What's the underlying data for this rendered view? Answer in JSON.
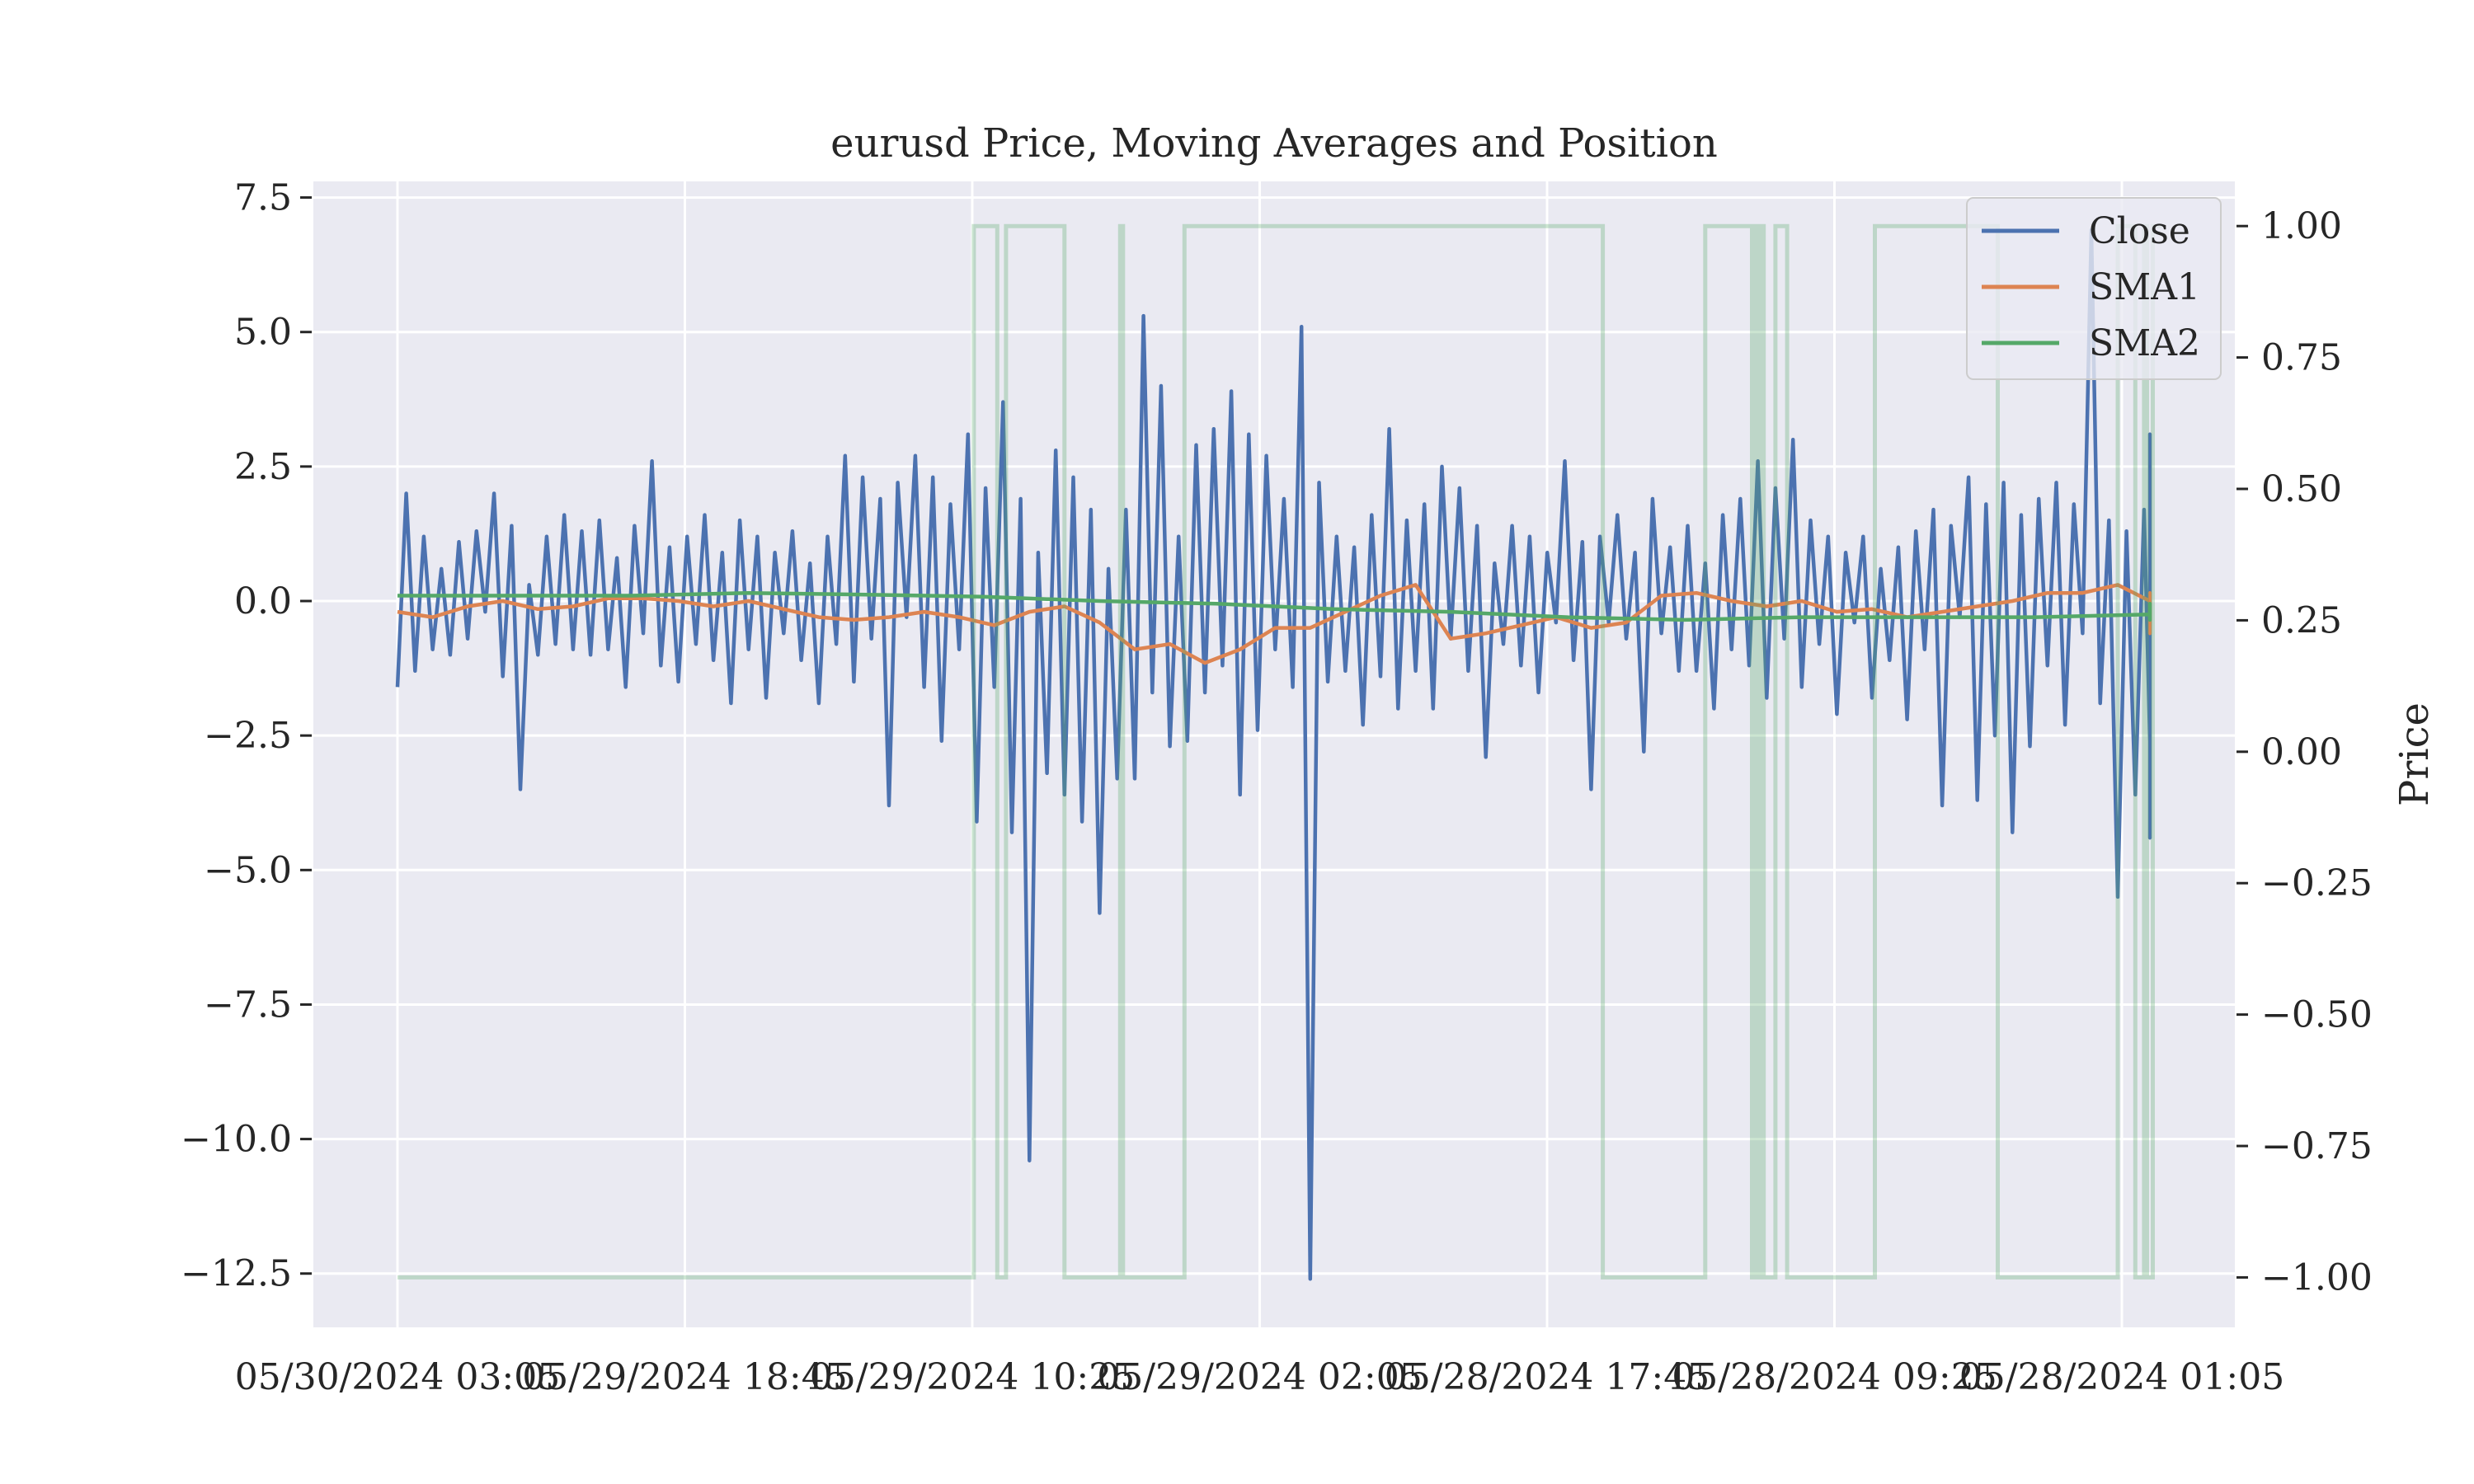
{
  "chart_data": {
    "type": "line",
    "title": "eurusd Price, Moving Averages and Position",
    "xlabel": "",
    "ylabel": "",
    "y2label": "Price",
    "grid": true,
    "legend_position": "top-right",
    "x_tick_labels": [
      "05/30/2024 03:05",
      "05/29/2024 18:45",
      "05/29/2024 10:25",
      "05/29/2024 02:05",
      "05/28/2024 17:45",
      "05/28/2024 09:25",
      "05/28/2024 01:05"
    ],
    "y_ticks": [
      7.5,
      5.0,
      2.5,
      0.0,
      -2.5,
      -5.0,
      -7.5,
      -10.0,
      -12.5
    ],
    "y_tick_labels": [
      "7.5",
      "5.0",
      "2.5",
      "0.0",
      "−2.5",
      "−5.0",
      "−7.5",
      "−10.0",
      "−12.5"
    ],
    "ylim": [
      -13.5,
      7.8
    ],
    "y2_ticks": [
      1.0,
      0.75,
      0.5,
      0.25,
      0.0,
      -0.25,
      -0.5,
      -0.75,
      -1.0
    ],
    "y2_tick_labels": [
      "1.00",
      "0.75",
      "0.50",
      "0.25",
      "0.00",
      "−0.25",
      "−0.50",
      "−0.75",
      "−1.00"
    ],
    "y2lim": [
      -1.095,
      1.085
    ],
    "x_count": 600,
    "series_colors": {
      "Close": "#4c72b0",
      "SMA1": "#dd8452",
      "SMA2": "#55a868",
      "Position": "#55a868"
    },
    "legend": [
      "Close",
      "SMA1",
      "SMA2"
    ],
    "series": [
      {
        "name": "Close",
        "axis": "left",
        "step": 3,
        "values": [
          -1.6,
          2.0,
          -1.3,
          1.2,
          -0.9,
          0.6,
          -1.0,
          1.1,
          -0.7,
          1.3,
          -0.2,
          2.0,
          -1.4,
          1.4,
          -3.5,
          0.3,
          -1.0,
          1.2,
          -0.8,
          1.6,
          -0.9,
          1.3,
          -1.0,
          1.5,
          -0.9,
          0.8,
          -1.6,
          1.4,
          -0.6,
          2.6,
          -1.2,
          1.0,
          -1.5,
          1.2,
          -0.8,
          1.6,
          -1.1,
          0.9,
          -1.9,
          1.5,
          -0.9,
          1.2,
          -1.8,
          0.9,
          -0.6,
          1.3,
          -1.1,
          0.7,
          -1.9,
          1.2,
          -0.8,
          2.7,
          -1.5,
          2.3,
          -0.7,
          1.9,
          -3.8,
          2.2,
          -0.3,
          2.7,
          -1.6,
          2.3,
          -2.6,
          1.8,
          -0.9,
          3.1,
          -4.1,
          2.1,
          -1.6,
          3.7,
          -4.3,
          1.9,
          -10.4,
          0.9,
          -3.2,
          2.8,
          -3.6,
          2.3,
          -4.1,
          1.7,
          -5.8,
          0.6,
          -3.3,
          1.7,
          -3.3,
          5.3,
          -1.7,
          4.0,
          -2.7,
          1.2,
          -2.6,
          2.9,
          -1.7,
          3.2,
          -1.2,
          3.9,
          -3.6,
          3.1,
          -2.4,
          2.7,
          -0.9,
          1.9,
          -1.6,
          5.1,
          -12.6,
          2.2,
          -1.5,
          1.2,
          -1.3,
          1.0,
          -2.3,
          1.6,
          -1.4,
          3.2,
          -2.0,
          1.5,
          -1.3,
          1.8,
          -2.0,
          2.5,
          -0.7,
          2.1,
          -1.3,
          1.4,
          -2.9,
          0.7,
          -0.8,
          1.4,
          -1.2,
          1.2,
          -1.7,
          0.9,
          -0.4,
          2.6,
          -1.1,
          1.1,
          -3.5,
          1.2,
          -0.4,
          1.6,
          -0.7,
          0.9,
          -2.8,
          1.9,
          -0.6,
          1.0,
          -1.3,
          1.4,
          -1.3,
          0.7,
          -2.0,
          1.6,
          -0.9,
          1.9,
          -1.2,
          2.6,
          -1.8,
          2.1,
          -0.7,
          3.0,
          -1.6,
          1.5,
          -0.8,
          1.2,
          -2.1,
          0.9,
          -0.4,
          1.2,
          -1.8,
          0.6,
          -1.1,
          1.0,
          -2.2,
          1.3,
          -0.9,
          1.7,
          -3.8,
          1.4,
          -0.3,
          2.3,
          -3.7,
          1.8,
          -2.5,
          2.2,
          -4.3,
          1.6,
          -2.7,
          1.9,
          -1.2,
          2.2,
          -2.3,
          1.8,
          -0.6,
          6.9,
          -1.9,
          1.5,
          -5.5,
          1.3,
          -3.6,
          1.7,
          -2.6,
          0.9,
          -1.8,
          1.6,
          -2.7,
          1.2,
          -2.3,
          2.1,
          -1.6,
          3.1,
          -2.0,
          1.1,
          -2.6,
          2.4,
          -1.7,
          1.7,
          -2.7,
          1.3,
          -1.8,
          1.6,
          -1.3,
          2.2,
          -0.6,
          1.4,
          -1.9,
          1.0,
          -1.2,
          1.8,
          -1.5,
          0.7,
          -4.4,
          1.3,
          -0.8,
          1.1,
          -1.5,
          2.2,
          -0.9,
          1.1,
          -2.4,
          2.5,
          -1.4,
          1.3,
          -2.3,
          2.5,
          -0.3,
          0.7,
          -4.2
        ]
      },
      {
        "name": "SMA1",
        "axis": "left",
        "step": 12,
        "values": [
          -0.2,
          -0.3,
          -0.1,
          0.0,
          -0.15,
          -0.1,
          0.05,
          0.05,
          0.0,
          -0.1,
          0.0,
          -0.15,
          -0.3,
          -0.35,
          -0.3,
          -0.2,
          -0.3,
          -0.45,
          -0.2,
          -0.1,
          -0.4,
          -0.9,
          -0.8,
          -1.15,
          -0.9,
          -0.5,
          -0.5,
          -0.2,
          0.1,
          0.3,
          -0.7,
          -0.6,
          -0.45,
          -0.3,
          -0.5,
          -0.4,
          0.1,
          0.15,
          0.0,
          -0.1,
          0.0,
          -0.2,
          -0.15,
          -0.3,
          -0.2,
          -0.1,
          0.0,
          0.15,
          0.15,
          0.3,
          0.0,
          -0.4,
          -0.2,
          -0.2,
          0.0,
          -0.6,
          -0.2,
          -0.3,
          0.1,
          -0.2,
          -0.4,
          -0.2,
          0.0,
          0.0,
          0.05,
          0.1,
          0.15,
          -0.1,
          -0.1,
          -0.2,
          -0.3,
          -0.1,
          -0.1,
          -0.2,
          -0.1,
          0.0,
          0.0,
          0.05,
          -0.1,
          -0.1,
          -0.2,
          -0.2,
          -0.25,
          -0.2,
          -0.15,
          -0.15,
          -0.1,
          -0.2,
          -0.15,
          -0.1,
          -0.05,
          0.1,
          0.0,
          0.1,
          0.05,
          -0.1,
          -0.1,
          -0.15,
          -0.1,
          -0.1
        ]
      },
      {
        "name": "SMA2",
        "axis": "left",
        "step": 40,
        "values": [
          0.1,
          0.1,
          0.1,
          0.15,
          0.12,
          0.08,
          0.0,
          -0.05,
          -0.15,
          -0.2,
          -0.3,
          -0.35,
          -0.3,
          -0.3,
          -0.3,
          -0.25,
          -0.3,
          -0.3,
          -0.3,
          -0.35,
          -0.35,
          -0.3,
          -0.2,
          -0.15,
          -0.1,
          -0.05,
          -0.1,
          -0.15,
          -0.2,
          -0.2,
          -0.15,
          -0.15,
          -0.15,
          -0.15,
          -0.15,
          -0.15,
          -0.12,
          -0.1,
          -0.12,
          -0.12
        ]
      },
      {
        "name": "Position",
        "axis": "right",
        "values": [
          -1,
          -1,
          -1,
          -1,
          -1,
          -1,
          -1,
          -1,
          -1,
          -1,
          -1,
          -1,
          -1,
          -1,
          -1,
          -1,
          -1,
          -1,
          -1,
          -1,
          -1,
          -1,
          -1,
          -1,
          -1,
          -1,
          -1,
          -1,
          -1,
          -1,
          -1,
          -1,
          -1,
          -1,
          -1,
          -1,
          -1,
          -1,
          -1,
          -1,
          -1,
          -1,
          -1,
          -1,
          -1,
          -1,
          -1,
          -1,
          -1,
          -1,
          -1,
          -1,
          -1,
          -1,
          -1,
          -1,
          -1,
          -1,
          -1,
          -1,
          -1,
          -1,
          -1,
          -1,
          -1,
          -1,
          -1,
          -1,
          -1,
          -1,
          -1,
          -1,
          -1,
          -1,
          -1,
          -1,
          -1,
          -1,
          -1,
          -1,
          -1,
          -1,
          -1,
          -1,
          -1,
          -1,
          -1,
          -1,
          -1,
          -1,
          -1,
          -1,
          -1,
          -1,
          -1,
          -1,
          -1,
          -1,
          -1,
          -1,
          -1,
          -1,
          -1,
          -1,
          -1,
          -1,
          -1,
          -1,
          -1,
          -1,
          -1,
          -1,
          -1,
          -1,
          -1,
          -1,
          -1,
          -1,
          -1,
          -1,
          -1,
          -1,
          -1,
          -1,
          -1,
          -1,
          -1,
          -1,
          -1,
          -1,
          -1,
          -1,
          -1,
          -1,
          -1,
          -1,
          -1,
          -1,
          -1,
          -1,
          -1,
          -1,
          -1,
          -1,
          -1,
          -1,
          -1,
          -1,
          -1,
          -1,
          -1,
          -1,
          -1,
          -1,
          -1,
          -1,
          -1,
          -1,
          -1,
          -1,
          -1,
          -1,
          -1,
          -1,
          -1,
          -1,
          -1,
          -1,
          -1,
          -1,
          -1,
          -1,
          -1,
          -1,
          -1,
          -1,
          -1,
          -1,
          -1,
          -1,
          -1,
          -1,
          -1,
          -1,
          -1,
          -1,
          -1,
          -1,
          -1,
          -1,
          -1,
          -1,
          -1,
          -1,
          -1,
          -1,
          -1,
          1,
          1,
          1,
          1,
          1,
          1,
          1,
          1,
          -1,
          -1,
          -1,
          1,
          1,
          1,
          1,
          1,
          1,
          1,
          1,
          1,
          1,
          1,
          1,
          1,
          1,
          1,
          1,
          1,
          1,
          1,
          1,
          -1,
          -1,
          -1,
          -1,
          -1,
          -1,
          -1,
          -1,
          -1,
          -1,
          -1,
          -1,
          -1,
          -1,
          -1,
          -1,
          -1,
          -1,
          -1,
          1,
          -1,
          -1,
          -1,
          -1,
          -1,
          -1,
          -1,
          -1,
          -1,
          -1,
          -1,
          -1,
          -1,
          -1,
          -1,
          -1,
          -1,
          -1,
          -1,
          -1,
          -1,
          1,
          1,
          1,
          1,
          1,
          1,
          1,
          1,
          1,
          1,
          1,
          1,
          1,
          1,
          1,
          1,
          1,
          1,
          1,
          1,
          1,
          1,
          1,
          1,
          1,
          1,
          1,
          1,
          1,
          1,
          1,
          1,
          1,
          1,
          1,
          1,
          1,
          1,
          1,
          1,
          1,
          1,
          1,
          1,
          1,
          1,
          1,
          1,
          1,
          1,
          1,
          1,
          1,
          1,
          1,
          1,
          1,
          1,
          1,
          1,
          1,
          1,
          1,
          1,
          1,
          1,
          1,
          1,
          1,
          1,
          1,
          1,
          1,
          1,
          1,
          1,
          1,
          1,
          1,
          1,
          1,
          1,
          1,
          1,
          1,
          1,
          1,
          1,
          1,
          1,
          1,
          1,
          1,
          1,
          1,
          1,
          1,
          1,
          1,
          1,
          1,
          1,
          1,
          1,
          1,
          1,
          1,
          1,
          1,
          1,
          1,
          1,
          1,
          1,
          1,
          1,
          1,
          1,
          1,
          1,
          1,
          1,
          1,
          1,
          1,
          1,
          1,
          1,
          1,
          1,
          1,
          1,
          1,
          1,
          1,
          1,
          1,
          1,
          1,
          1,
          1,
          1,
          1,
          -1,
          -1,
          -1,
          -1,
          -1,
          -1,
          -1,
          -1,
          -1,
          -1,
          -1,
          -1,
          -1,
          -1,
          -1,
          -1,
          -1,
          -1,
          -1,
          -1,
          -1,
          -1,
          -1,
          -1,
          -1,
          -1,
          -1,
          -1,
          -1,
          -1,
          -1,
          -1,
          -1,
          -1,
          -1,
          1,
          1,
          1,
          1,
          1,
          1,
          1,
          1,
          1,
          1,
          1,
          1,
          1,
          1,
          1,
          1,
          -1,
          1,
          -1,
          1,
          -1,
          -1,
          -1,
          -1,
          1,
          1,
          1,
          1,
          -1,
          -1,
          -1,
          -1,
          -1,
          -1,
          -1,
          -1,
          -1,
          -1,
          -1,
          -1,
          -1,
          -1,
          -1,
          -1,
          -1,
          -1,
          -1,
          -1,
          -1,
          -1,
          -1,
          -1,
          -1,
          -1,
          -1,
          -1,
          -1,
          -1,
          1,
          1,
          1,
          1,
          1,
          1,
          1,
          1,
          1,
          1,
          1,
          1,
          1,
          1,
          1,
          1,
          1,
          1,
          1,
          1,
          1,
          1,
          1,
          1,
          1,
          1,
          1,
          1,
          1,
          1,
          1,
          1,
          1,
          1,
          1,
          1,
          1,
          1,
          1,
          1,
          1,
          1,
          -1,
          -1,
          -1,
          -1,
          -1,
          -1,
          -1,
          -1,
          -1,
          -1,
          -1,
          -1,
          -1,
          -1,
          -1,
          -1,
          -1,
          -1,
          -1,
          -1,
          -1,
          -1,
          -1,
          -1,
          -1,
          -1,
          -1,
          -1,
          -1,
          -1,
          -1,
          -1,
          -1,
          -1,
          -1,
          -1,
          -1,
          -1,
          -1,
          -1,
          -1,
          1,
          1,
          1,
          1,
          1,
          1,
          -1,
          -1,
          -1,
          1,
          -1,
          -1,
          1,
          1,
          1,
          1
        ]
      }
    ]
  }
}
